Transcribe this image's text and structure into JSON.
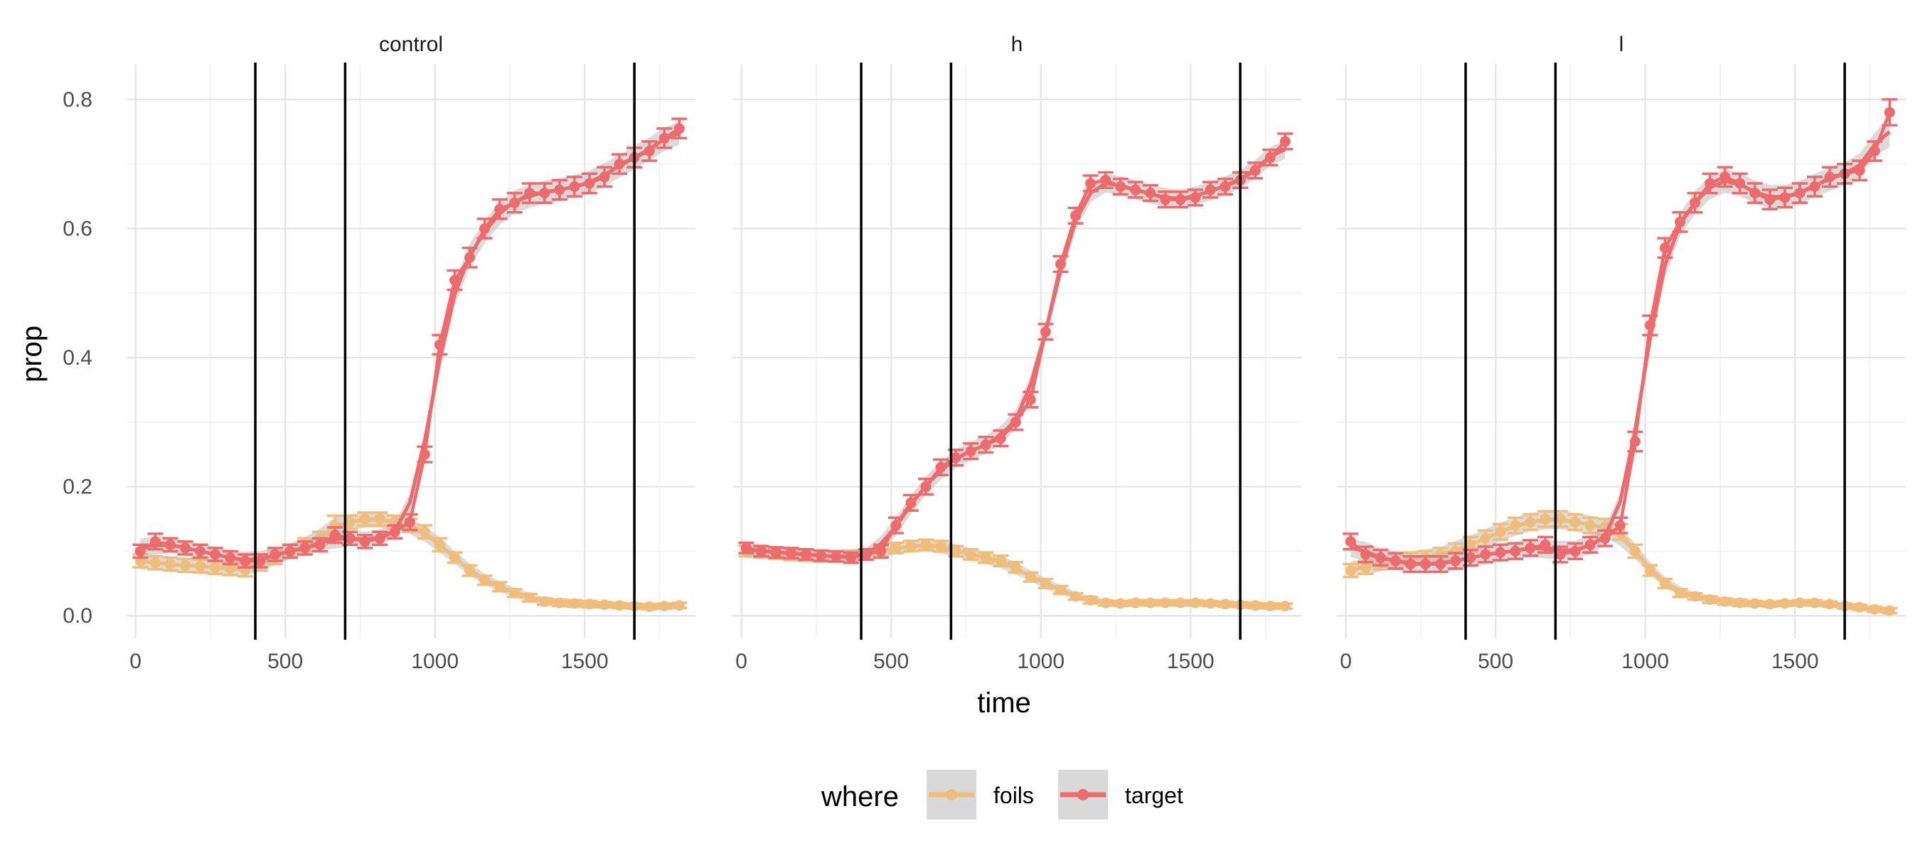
{
  "chart_data": {
    "type": "line",
    "facets": [
      "control",
      "h",
      "l"
    ],
    "xlabel": "time",
    "ylabel": "prop",
    "xlim": [
      -30,
      1870
    ],
    "ylim": [
      -0.035,
      0.855
    ],
    "x_ticks": [
      0,
      500,
      1000,
      1500
    ],
    "x_tick_labels": [
      "0",
      "500",
      "1000",
      "1500"
    ],
    "y_ticks": [
      0.0,
      0.2,
      0.4,
      0.6,
      0.8
    ],
    "y_tick_labels": [
      "0.0",
      "0.2",
      "0.4",
      "0.6",
      "0.8"
    ],
    "grid": true,
    "vlines": [
      400,
      700,
      1666
    ],
    "legend": {
      "title": "where",
      "position": "bottom",
      "entries": [
        {
          "label": "foils",
          "color": "#F0BE7A"
        },
        {
          "label": "target",
          "color": "#EF6A6B"
        }
      ]
    },
    "x": [
      16,
      66,
      116,
      166,
      216,
      266,
      316,
      366,
      416,
      466,
      516,
      566,
      616,
      666,
      716,
      766,
      816,
      866,
      916,
      966,
      1016,
      1066,
      1116,
      1166,
      1216,
      1266,
      1316,
      1366,
      1416,
      1466,
      1516,
      1566,
      1616,
      1666,
      1716,
      1766,
      1816
    ],
    "panels": [
      {
        "name": "control",
        "series": [
          {
            "name": "foils",
            "values": [
              0.085,
              0.082,
              0.08,
              0.078,
              0.077,
              0.075,
              0.073,
              0.071,
              0.08,
              0.09,
              0.1,
              0.11,
              0.12,
              0.14,
              0.145,
              0.15,
              0.15,
              0.145,
              0.14,
              0.13,
              0.11,
              0.09,
              0.07,
              0.055,
              0.045,
              0.035,
              0.028,
              0.022,
              0.02,
              0.019,
              0.018,
              0.017,
              0.016,
              0.015,
              0.014,
              0.015,
              0.016
            ],
            "errors": [
              0.01,
              0.01,
              0.01,
              0.01,
              0.01,
              0.01,
              0.01,
              0.01,
              0.01,
              0.01,
              0.01,
              0.01,
              0.01,
              0.015,
              0.01,
              0.01,
              0.01,
              0.01,
              0.01,
              0.01,
              0.01,
              0.008,
              0.008,
              0.007,
              0.007,
              0.006,
              0.006,
              0.005,
              0.005,
              0.005,
              0.005,
              0.004,
              0.004,
              0.004,
              0.004,
              0.004,
              0.004
            ]
          },
          {
            "name": "target",
            "values": [
              0.1,
              0.115,
              0.11,
              0.105,
              0.1,
              0.095,
              0.09,
              0.085,
              0.085,
              0.095,
              0.1,
              0.105,
              0.11,
              0.125,
              0.12,
              0.115,
              0.12,
              0.13,
              0.145,
              0.25,
              0.42,
              0.52,
              0.555,
              0.6,
              0.63,
              0.64,
              0.655,
              0.655,
              0.66,
              0.665,
              0.67,
              0.68,
              0.7,
              0.71,
              0.72,
              0.74,
              0.755
            ],
            "errors": [
              0.01,
              0.012,
              0.01,
              0.01,
              0.01,
              0.01,
              0.01,
              0.01,
              0.01,
              0.01,
              0.01,
              0.01,
              0.01,
              0.012,
              0.01,
              0.01,
              0.01,
              0.01,
              0.012,
              0.012,
              0.015,
              0.015,
              0.015,
              0.015,
              0.015,
              0.015,
              0.015,
              0.015,
              0.015,
              0.015,
              0.015,
              0.015,
              0.015,
              0.015,
              0.015,
              0.015,
              0.015
            ]
          }
        ]
      },
      {
        "name": "h",
        "series": [
          {
            "name": "foils",
            "values": [
              0.1,
              0.098,
              0.096,
              0.094,
              0.093,
              0.092,
              0.092,
              0.093,
              0.095,
              0.1,
              0.105,
              0.108,
              0.11,
              0.108,
              0.1,
              0.095,
              0.09,
              0.085,
              0.075,
              0.06,
              0.05,
              0.04,
              0.03,
              0.024,
              0.02,
              0.019,
              0.02,
              0.02,
              0.02,
              0.02,
              0.02,
              0.019,
              0.018,
              0.017,
              0.016,
              0.015,
              0.015
            ],
            "errors": [
              0.008,
              0.008,
              0.008,
              0.008,
              0.008,
              0.008,
              0.008,
              0.008,
              0.008,
              0.008,
              0.008,
              0.008,
              0.008,
              0.008,
              0.008,
              0.008,
              0.008,
              0.008,
              0.008,
              0.007,
              0.007,
              0.006,
              0.005,
              0.005,
              0.004,
              0.004,
              0.004,
              0.004,
              0.004,
              0.004,
              0.004,
              0.004,
              0.004,
              0.004,
              0.004,
              0.004,
              0.004
            ]
          },
          {
            "name": "target",
            "values": [
              0.105,
              0.1,
              0.098,
              0.097,
              0.095,
              0.093,
              0.092,
              0.09,
              0.095,
              0.1,
              0.14,
              0.175,
              0.2,
              0.23,
              0.245,
              0.255,
              0.265,
              0.275,
              0.3,
              0.335,
              0.44,
              0.545,
              0.62,
              0.67,
              0.675,
              0.665,
              0.66,
              0.655,
              0.645,
              0.645,
              0.648,
              0.66,
              0.665,
              0.675,
              0.69,
              0.71,
              0.735
            ],
            "errors": [
              0.008,
              0.008,
              0.008,
              0.008,
              0.008,
              0.008,
              0.008,
              0.008,
              0.008,
              0.01,
              0.012,
              0.012,
              0.012,
              0.012,
              0.012,
              0.012,
              0.012,
              0.012,
              0.012,
              0.012,
              0.012,
              0.012,
              0.012,
              0.012,
              0.012,
              0.012,
              0.012,
              0.012,
              0.012,
              0.012,
              0.012,
              0.012,
              0.012,
              0.012,
              0.012,
              0.012,
              0.012
            ]
          }
        ]
      },
      {
        "name": "l",
        "series": [
          {
            "name": "foils",
            "values": [
              0.07,
              0.075,
              0.082,
              0.085,
              0.088,
              0.09,
              0.095,
              0.1,
              0.11,
              0.12,
              0.13,
              0.14,
              0.145,
              0.15,
              0.15,
              0.145,
              0.14,
              0.138,
              0.13,
              0.1,
              0.07,
              0.05,
              0.035,
              0.03,
              0.025,
              0.022,
              0.02,
              0.019,
              0.018,
              0.019,
              0.02,
              0.02,
              0.018,
              0.015,
              0.013,
              0.01,
              0.008
            ],
            "errors": [
              0.01,
              0.01,
              0.01,
              0.01,
              0.01,
              0.01,
              0.01,
              0.012,
              0.012,
              0.012,
              0.012,
              0.012,
              0.012,
              0.012,
              0.012,
              0.012,
              0.012,
              0.012,
              0.012,
              0.01,
              0.008,
              0.007,
              0.006,
              0.005,
              0.005,
              0.005,
              0.005,
              0.004,
              0.004,
              0.004,
              0.004,
              0.004,
              0.004,
              0.004,
              0.004,
              0.004,
              0.004
            ]
          },
          {
            "name": "target",
            "values": [
              0.115,
              0.095,
              0.09,
              0.085,
              0.08,
              0.08,
              0.08,
              0.085,
              0.09,
              0.095,
              0.098,
              0.1,
              0.105,
              0.11,
              0.095,
              0.1,
              0.11,
              0.12,
              0.14,
              0.27,
              0.45,
              0.57,
              0.61,
              0.64,
              0.67,
              0.68,
              0.67,
              0.655,
              0.645,
              0.648,
              0.655,
              0.665,
              0.68,
              0.685,
              0.69,
              0.72,
              0.78
            ],
            "errors": [
              0.012,
              0.012,
              0.012,
              0.012,
              0.012,
              0.012,
              0.012,
              0.012,
              0.012,
              0.012,
              0.012,
              0.012,
              0.012,
              0.012,
              0.012,
              0.012,
              0.012,
              0.012,
              0.012,
              0.015,
              0.015,
              0.015,
              0.015,
              0.015,
              0.015,
              0.015,
              0.015,
              0.015,
              0.015,
              0.015,
              0.015,
              0.015,
              0.015,
              0.015,
              0.015,
              0.015,
              0.02
            ]
          }
        ]
      }
    ]
  }
}
